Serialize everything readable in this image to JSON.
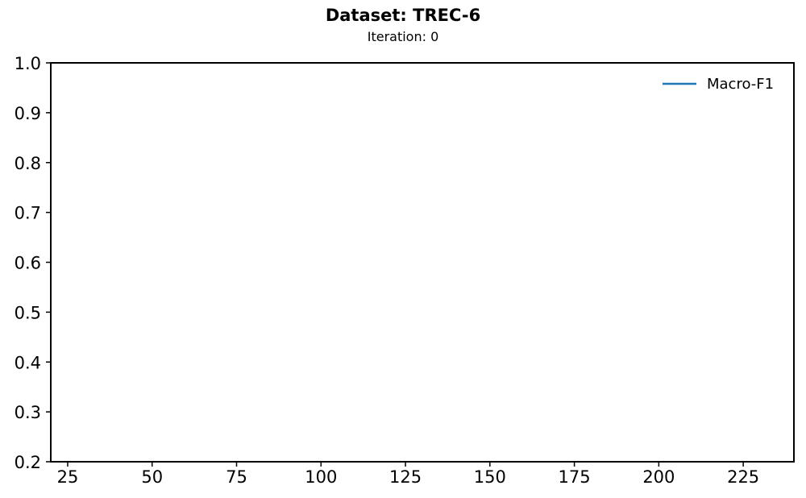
{
  "chart_data": {
    "type": "line",
    "title": "Dataset: TREC-6",
    "subtitle": "Iteration: 0",
    "xlabel": "",
    "ylabel": "",
    "xlim": [
      20,
      240
    ],
    "ylim": [
      0.2,
      1.0
    ],
    "x_ticks": [
      25,
      50,
      75,
      100,
      125,
      150,
      175,
      200,
      225
    ],
    "y_ticks": [
      0.2,
      0.3,
      0.4,
      0.5,
      0.6,
      0.7,
      0.8,
      0.9,
      1.0
    ],
    "grid": false,
    "legend_position": "top-right",
    "series": [
      {
        "name": "Macro-F1",
        "color": "#1f77b4",
        "x": [],
        "y": []
      }
    ]
  }
}
